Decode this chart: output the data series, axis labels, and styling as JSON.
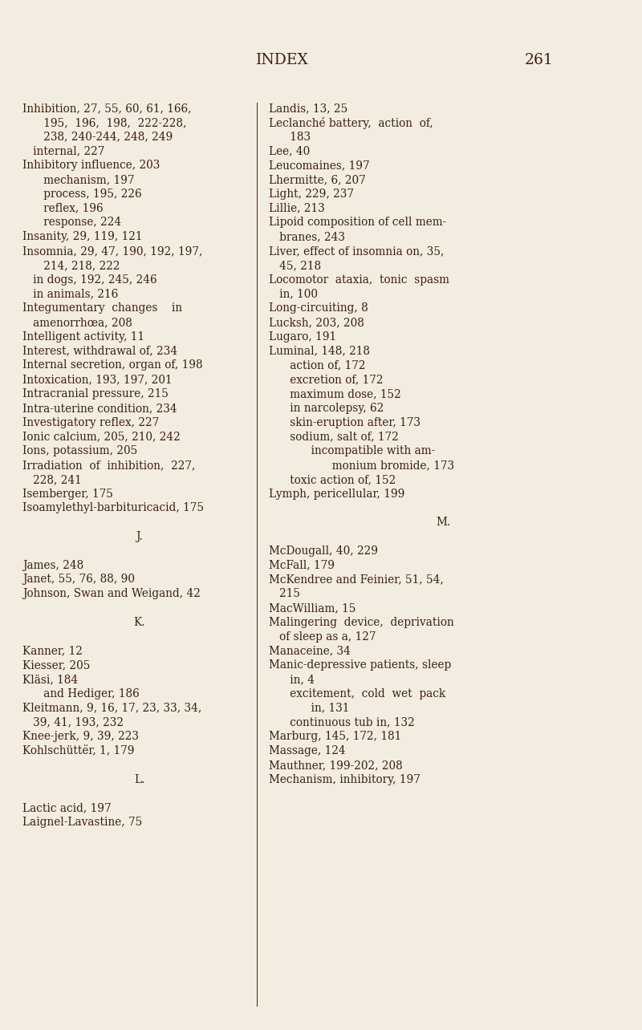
{
  "bg_color": "#f2ede0",
  "text_color": "#3d2010",
  "title": "INDEX",
  "page_num": "261",
  "title_fontsize": 13.5,
  "body_fontsize": 9.8,
  "fig_width": 8.0,
  "fig_height": 12.84,
  "dpi": 100,
  "left_col": [
    [
      "Inhibition, 27, 55, 60, 61, 166,",
      0
    ],
    [
      "      195,  196,  198,  222-228,",
      0
    ],
    [
      "      238, 240-244, 248, 249",
      0
    ],
    [
      "   internal, 227",
      0
    ],
    [
      "Inhibitory influence, 203",
      0
    ],
    [
      "      mechanism, 197",
      0
    ],
    [
      "      process, 195, 226",
      0
    ],
    [
      "      reflex, 196",
      0
    ],
    [
      "      response, 224",
      0
    ],
    [
      "Insanity, 29, 119, 121",
      0
    ],
    [
      "Insomnia, 29, 47, 190, 192, 197,",
      0
    ],
    [
      "      214, 218, 222",
      0
    ],
    [
      "   in dogs, 192, 245, 246",
      0
    ],
    [
      "   in animals, 216",
      0
    ],
    [
      "Integumentary  changes    in",
      0
    ],
    [
      "   amenorrhœa, 208",
      0
    ],
    [
      "Intelligent activity, 11",
      0
    ],
    [
      "Interest, withdrawal of, 234",
      0
    ],
    [
      "Internal secretion, organ of, 198",
      0
    ],
    [
      "Intoxication, 193, 197, 201",
      0
    ],
    [
      "Intracranial pressure, 215",
      0
    ],
    [
      "Intra-uterine condition, 234",
      0
    ],
    [
      "Investigatory reflex, 227",
      0
    ],
    [
      "Ionic calcium, 205, 210, 242",
      0
    ],
    [
      "Ions, potassium, 205",
      0
    ],
    [
      "Irradiation  of  inhibition,  227,",
      0
    ],
    [
      "   228, 241",
      0
    ],
    [
      "Isemberger, 175",
      0
    ],
    [
      "Isoamylethyl-barbituricacid, 175",
      0
    ],
    [
      "",
      0
    ],
    [
      "J.",
      1
    ],
    [
      "",
      0
    ],
    [
      "James, 248",
      0
    ],
    [
      "Janet, 55, 76, 88, 90",
      0
    ],
    [
      "Johnson, Swan and Weigand, 42",
      0
    ],
    [
      "",
      0
    ],
    [
      "K.",
      1
    ],
    [
      "",
      0
    ],
    [
      "Kanner, 12",
      0
    ],
    [
      "Kiesser, 205",
      0
    ],
    [
      "Kläsi, 184",
      0
    ],
    [
      "      and Hediger, 186",
      0
    ],
    [
      "Kleitmann, 9, 16, 17, 23, 33, 34,",
      0
    ],
    [
      "   39, 41, 193, 232",
      0
    ],
    [
      "Knee-jerk, 9, 39, 223",
      0
    ],
    [
      "Kohlschüttër, 1, 179",
      0
    ],
    [
      "",
      0
    ],
    [
      "L.",
      1
    ],
    [
      "",
      0
    ],
    [
      "Lactic acid, 197",
      0
    ],
    [
      "Laignel-Lavastine, 75",
      0
    ]
  ],
  "right_col": [
    [
      "Landis, 13, 25",
      0
    ],
    [
      "Leclanché battery,  action  of,",
      0
    ],
    [
      "      183",
      0
    ],
    [
      "Lee, 40",
      0
    ],
    [
      "Leucomaines, 197",
      0
    ],
    [
      "Lhermitte, 6, 207",
      0
    ],
    [
      "Light, 229, 237",
      0
    ],
    [
      "Lillie, 213",
      0
    ],
    [
      "Lipoid composition of cell mem-",
      0
    ],
    [
      "   branes, 243",
      0
    ],
    [
      "Liver, effect of insomnia on, 35,",
      0
    ],
    [
      "   45, 218",
      0
    ],
    [
      "Locomotor  ataxia,  tonic  spasm",
      0
    ],
    [
      "   in, 100",
      0
    ],
    [
      "Long-circuiting, 8",
      0
    ],
    [
      "Lucksh, 203, 208",
      0
    ],
    [
      "Lugaro, 191",
      0
    ],
    [
      "Luminal, 148, 218",
      0
    ],
    [
      "      action of, 172",
      0
    ],
    [
      "      excretion of, 172",
      0
    ],
    [
      "      maximum dose, 152",
      0
    ],
    [
      "      in narcolepsy, 62",
      0
    ],
    [
      "      skin-eruption after, 173",
      0
    ],
    [
      "      sodium, salt of, 172",
      0
    ],
    [
      "            incompatible with am-",
      0
    ],
    [
      "                  monium bromide, 173",
      0
    ],
    [
      "      toxic action of, 152",
      0
    ],
    [
      "Lymph, pericellular, 199",
      0
    ],
    [
      "",
      0
    ],
    [
      "M.",
      1
    ],
    [
      "",
      0
    ],
    [
      "McDougall, 40, 229",
      0
    ],
    [
      "McFall, 179",
      0
    ],
    [
      "McKendree and Feinier, 51, 54,",
      0
    ],
    [
      "   215",
      0
    ],
    [
      "MacWilliam, 15",
      0
    ],
    [
      "Malingering  device,  deprivation",
      0
    ],
    [
      "   of sleep as a, 127",
      0
    ],
    [
      "Manaceine, 34",
      0
    ],
    [
      "Manic-depressive patients, sleep",
      0
    ],
    [
      "      in, 4",
      0
    ],
    [
      "      excitement,  cold  wet  pack",
      0
    ],
    [
      "            in, 131",
      0
    ],
    [
      "      continuous tub in, 132",
      0
    ],
    [
      "Marburg, 145, 172, 181",
      0
    ],
    [
      "Massage, 124",
      0
    ],
    [
      "Mauthner, 199-202, 208",
      0
    ],
    [
      "Mechanism, inhibitory, 197",
      0
    ]
  ]
}
